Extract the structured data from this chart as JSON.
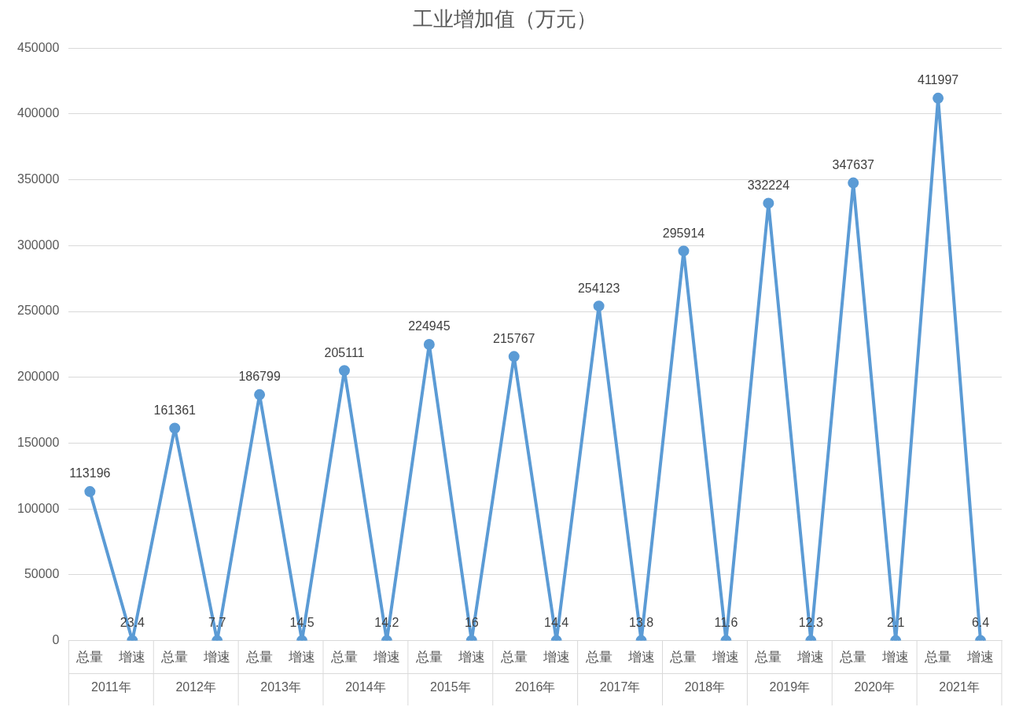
{
  "chart_data": {
    "type": "line",
    "title": "工业增加值（万元）",
    "categories": [
      "总量",
      "增速",
      "总量",
      "增速",
      "总量",
      "增速",
      "总量",
      "增速",
      "总量",
      "增速",
      "总量",
      "增速",
      "总量",
      "增速",
      "总量",
      "增速",
      "总量",
      "增速",
      "总量",
      "增速",
      "总量",
      "增速"
    ],
    "series": [
      {
        "color": "#5b9bd5",
        "values": [
          113196,
          23.4,
          161361,
          7.7,
          186799,
          14.5,
          205111,
          14.2,
          224945,
          16,
          215767,
          14.4,
          254123,
          13.8,
          295914,
          11.6,
          332224,
          12.3,
          347637,
          2.1,
          411997,
          6.4
        ]
      }
    ],
    "annotations": [
      "2011年",
      "2012年",
      "2013年",
      "2014年",
      "2015年",
      "2016年",
      "2017年",
      "2018年",
      "2019年",
      "2020年",
      "2021年"
    ],
    "ylim": [
      0,
      450000
    ],
    "yticks": [
      0,
      50000,
      100000,
      150000,
      200000,
      250000,
      300000,
      350000,
      400000,
      450000
    ],
    "grid": "y",
    "legend": false,
    "marker": "circle",
    "line_style": "solid",
    "data_labels": true
  }
}
